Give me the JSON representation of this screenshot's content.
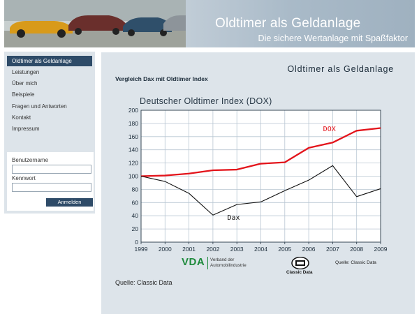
{
  "header": {
    "title": "Oldtimer als Geldanlage",
    "subtitle": "Die sichere Wertanlage mit Spaßfaktor"
  },
  "sidebar": {
    "items": [
      {
        "label": "Oldtimer als Geldanlage",
        "active": true
      },
      {
        "label": "Leistungen"
      },
      {
        "label": "Über mich"
      },
      {
        "label": "Beispiele"
      },
      {
        "label": "Fragen und Antworten"
      },
      {
        "label": "Kontakt"
      },
      {
        "label": "Impressum"
      }
    ]
  },
  "login": {
    "username_label": "Benutzername",
    "password_label": "Kennwort",
    "username_value": "",
    "password_value": "",
    "button_label": "Anmelden"
  },
  "main": {
    "heading": "Oldtimer als Geldanlage",
    "section_heading": "Vergleich Dax mit Oldtimer Index",
    "source": "Quelle: Classic Data"
  },
  "logos": {
    "vda_letters": "VDA",
    "vda_line1": "Verband der",
    "vda_line2": "Automobilindustrie",
    "classic_data": "Classic Data",
    "source_small": "Quelle: Classic Data"
  },
  "colors": {
    "accent": "#2e4b68",
    "panel": "#dde4ea",
    "dox_line": "#e3141b",
    "dax_line": "#111111"
  },
  "chart_data": {
    "type": "line",
    "title": "Deutscher Oldtimer Index (DOX)",
    "x": [
      1999,
      2000,
      2001,
      2002,
      2003,
      2004,
      2005,
      2006,
      2007,
      2008,
      2009
    ],
    "ylim": [
      0,
      200
    ],
    "yticks": [
      0,
      20,
      40,
      60,
      80,
      100,
      120,
      140,
      160,
      180,
      200
    ],
    "grid": true,
    "series": [
      {
        "name": "DOX",
        "values": [
          100,
          101,
          104,
          109,
          110,
          119,
          121,
          143,
          151,
          169,
          173
        ]
      },
      {
        "name": "Dax",
        "values": [
          100,
          92,
          74,
          41,
          57,
          61,
          78,
          94,
          116,
          69,
          81
        ]
      }
    ]
  }
}
